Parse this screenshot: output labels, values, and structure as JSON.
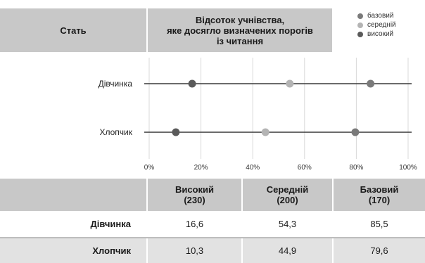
{
  "header": {
    "category_label": "Стать",
    "chart_title": "Відсоток учнівства,\nяке досягло визначених порогів\nіз читання"
  },
  "legend": [
    {
      "name": "базовий",
      "color": "#7a7a7a"
    },
    {
      "name": "середній",
      "color": "#b4b4b4"
    },
    {
      "name": "високий",
      "color": "#5a5a5a"
    }
  ],
  "chart_data": {
    "type": "scatter",
    "categories": [
      "Дівчинка",
      "Хлопчик"
    ],
    "series": [
      {
        "name": "базовий",
        "color": "#7a7a7a",
        "values": [
          85.5,
          79.6
        ]
      },
      {
        "name": "середній",
        "color": "#b4b4b4",
        "values": [
          54.3,
          44.9
        ]
      },
      {
        "name": "високий",
        "color": "#5a5a5a",
        "values": [
          16.6,
          10.3
        ]
      }
    ],
    "xlim": [
      0,
      100
    ],
    "x_ticks": [
      "0%",
      "20%",
      "40%",
      "60%",
      "80%",
      "100%"
    ],
    "grid": true
  },
  "table": {
    "columns": [
      {
        "label": "Високий",
        "sub": "(230)"
      },
      {
        "label": "Середній",
        "sub": "(200)"
      },
      {
        "label": "Базовий",
        "sub": "(170)"
      }
    ],
    "rows": [
      {
        "label": "Дівчинка",
        "values": [
          "16,6",
          "54,3",
          "85,5"
        ]
      },
      {
        "label": "Хлопчик",
        "values": [
          "10,3",
          "44,9",
          "79,6"
        ]
      }
    ]
  }
}
